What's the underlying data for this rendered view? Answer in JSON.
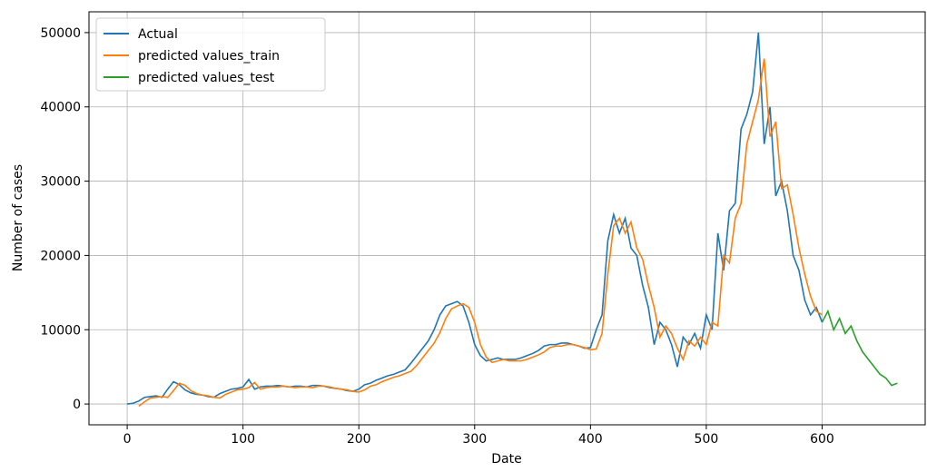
{
  "chart_data": {
    "type": "line",
    "xlabel": "Date",
    "ylabel": "Number of cases",
    "xlim": [
      -33,
      689
    ],
    "ylim": [
      -2800,
      52800
    ],
    "xticks": [
      0,
      100,
      200,
      300,
      400,
      500,
      600
    ],
    "yticks": [
      0,
      10000,
      20000,
      30000,
      40000,
      50000
    ],
    "grid": true,
    "legend": "upper left",
    "series": [
      {
        "name": "Actual",
        "color": "#1f77b4",
        "x": [
          0,
          5,
          10,
          15,
          20,
          25,
          30,
          35,
          40,
          45,
          50,
          55,
          60,
          65,
          70,
          75,
          80,
          85,
          90,
          95,
          100,
          105,
          110,
          115,
          120,
          125,
          130,
          135,
          140,
          145,
          150,
          155,
          160,
          165,
          170,
          175,
          180,
          185,
          190,
          195,
          200,
          205,
          210,
          215,
          220,
          225,
          230,
          235,
          240,
          245,
          250,
          255,
          260,
          265,
          270,
          275,
          280,
          285,
          290,
          295,
          300,
          305,
          310,
          315,
          320,
          325,
          330,
          335,
          340,
          345,
          350,
          355,
          360,
          365,
          370,
          375,
          380,
          385,
          390,
          395,
          400,
          405,
          410,
          415,
          420,
          425,
          430,
          435,
          440,
          445,
          450,
          455,
          460,
          465,
          470,
          475,
          480,
          485,
          490,
          495,
          500,
          505,
          510,
          515,
          520,
          525,
          530,
          535,
          540,
          545,
          550,
          555,
          560,
          565,
          570,
          575,
          580,
          585,
          590,
          595,
          600
        ],
        "values": [
          0,
          100,
          400,
          900,
          1000,
          1100,
          900,
          2000,
          3000,
          2600,
          1900,
          1500,
          1300,
          1200,
          1000,
          900,
          1400,
          1700,
          2000,
          2100,
          2300,
          3300,
          2000,
          2300,
          2400,
          2400,
          2500,
          2400,
          2300,
          2400,
          2400,
          2300,
          2500,
          2500,
          2400,
          2200,
          2100,
          2000,
          1800,
          1700,
          2000,
          2600,
          2800,
          3200,
          3500,
          3800,
          4000,
          4300,
          4600,
          5500,
          6500,
          7500,
          8500,
          10000,
          12000,
          13200,
          13500,
          13800,
          13200,
          11000,
          8000,
          6500,
          5800,
          6000,
          6200,
          6000,
          6000,
          6000,
          6200,
          6500,
          6800,
          7200,
          7800,
          8000,
          8000,
          8200,
          8200,
          8000,
          7800,
          7500,
          7600,
          10000,
          12000,
          22000,
          25500,
          23000,
          25000,
          21000,
          20000,
          16000,
          13000,
          8000,
          11000,
          10000,
          8000,
          5000,
          9000,
          8000,
          9500,
          7500,
          12000,
          10000,
          23000,
          18000,
          26000,
          27000,
          37000,
          39000,
          42000,
          50000,
          35000,
          40000,
          28000,
          30000,
          26000,
          20000,
          18000,
          14000,
          12000,
          13000,
          11000
        ]
      },
      {
        "name": "predicted values_train",
        "color": "#ff7f0e",
        "x": [
          10,
          15,
          20,
          25,
          30,
          35,
          40,
          45,
          50,
          55,
          60,
          65,
          70,
          75,
          80,
          85,
          90,
          95,
          100,
          105,
          110,
          115,
          120,
          125,
          130,
          135,
          140,
          145,
          150,
          155,
          160,
          165,
          170,
          175,
          180,
          185,
          190,
          195,
          200,
          205,
          210,
          215,
          220,
          225,
          230,
          235,
          240,
          245,
          250,
          255,
          260,
          265,
          270,
          275,
          280,
          285,
          290,
          295,
          300,
          305,
          310,
          315,
          320,
          325,
          330,
          335,
          340,
          345,
          350,
          355,
          360,
          365,
          370,
          375,
          380,
          385,
          390,
          395,
          400,
          405,
          410,
          415,
          420,
          425,
          430,
          435,
          440,
          445,
          450,
          455,
          460,
          465,
          470,
          475,
          480,
          485,
          490,
          495,
          500,
          505,
          510,
          515,
          520,
          525,
          530,
          535,
          540,
          545,
          550,
          555,
          560,
          565,
          570,
          575,
          580,
          585,
          590,
          595,
          600
        ],
        "values": [
          -300,
          300,
          800,
          900,
          1000,
          900,
          1800,
          2800,
          2500,
          1800,
          1400,
          1200,
          1100,
          900,
          800,
          1300,
          1600,
          1900,
          2000,
          2200,
          2900,
          2000,
          2200,
          2300,
          2300,
          2400,
          2300,
          2200,
          2300,
          2300,
          2200,
          2400,
          2400,
          2300,
          2100,
          2000,
          1900,
          1700,
          1600,
          1900,
          2400,
          2600,
          3000,
          3300,
          3600,
          3800,
          4100,
          4400,
          5200,
          6200,
          7200,
          8200,
          9600,
          11500,
          12800,
          13200,
          13500,
          13000,
          11000,
          8000,
          6300,
          5600,
          5800,
          6000,
          5800,
          5800,
          5800,
          6000,
          6300,
          6600,
          7000,
          7600,
          7800,
          7800,
          8000,
          8000,
          7800,
          7600,
          7300,
          7400,
          9500,
          17500,
          24000,
          25000,
          23000,
          24500,
          21000,
          19500,
          16000,
          13000,
          9000,
          10500,
          9500,
          7500,
          6000,
          8500,
          7800,
          9000,
          8000,
          11000,
          10500,
          20000,
          19000,
          25000,
          27000,
          35000,
          38000,
          41000,
          46500,
          36000,
          38000,
          29000,
          29500,
          25500,
          21000,
          17500,
          14500,
          12500,
          12000
        ]
      },
      {
        "name": "predicted values_test",
        "color": "#2ca02c",
        "x": [
          600,
          605,
          610,
          615,
          620,
          625,
          630,
          635,
          640,
          645,
          650,
          655,
          660,
          665
        ],
        "values": [
          11000,
          12500,
          10000,
          11500,
          9500,
          10500,
          8500,
          7000,
          6000,
          5000,
          4000,
          3500,
          2500,
          2800
        ]
      }
    ]
  }
}
